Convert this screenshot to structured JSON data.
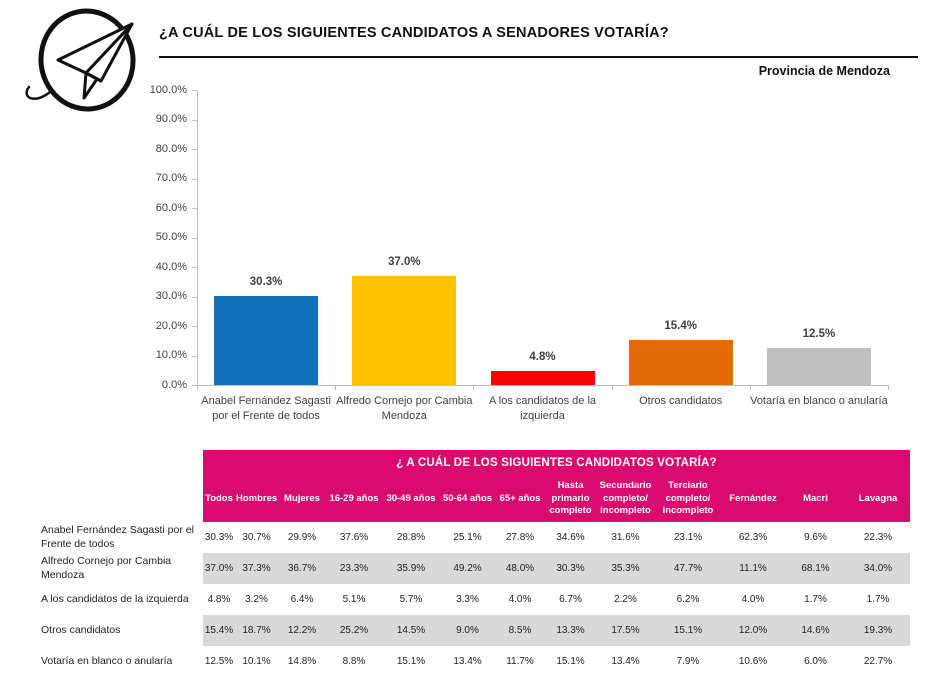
{
  "header": {
    "title": "¿A CUÁL DE LOS SIGUIENTES CANDIDATOS A SENADORES VOTARÍA?",
    "subtitle": "Provincia de Mendoza",
    "logo": "paper-plane-logo"
  },
  "chart_data": {
    "type": "bar",
    "title": "",
    "categories": [
      "Anabel Fernández Sagasti por el Frente de todos",
      "Alfredo Cornejo por Cambia Mendoza",
      "A los candidatos de la izquierda",
      "Otros candidatos",
      "Votaría en blanco o anularía"
    ],
    "values": [
      30.3,
      37.0,
      4.8,
      15.4,
      12.5
    ],
    "value_labels": [
      "30.3%",
      "37.0%",
      "4.8%",
      "15.4%",
      "12.5%"
    ],
    "bar_colors": [
      "#1172BA",
      "#FFC000",
      "#FE0000",
      "#E36C09",
      "#BFBFBF"
    ],
    "xlabel": "",
    "ylabel": "",
    "ylim": [
      0,
      100
    ],
    "y_ticks": [
      0,
      10,
      20,
      30,
      40,
      50,
      60,
      70,
      80,
      90,
      100
    ],
    "y_tick_labels": [
      "0.0%",
      "10.0%",
      "20.0%",
      "30.0%",
      "40.0%",
      "50.0%",
      "60.0%",
      "70.0%",
      "80.0%",
      "90.0%",
      "100.0%"
    ],
    "grid": false,
    "legend": false
  },
  "table": {
    "title": "¿ A  CUÁL DE LOS SIGUIENTES CANDIDATOS VOTARÍA?",
    "header_bg": "#D90B6E",
    "zebra_bg": "#D9D9D9",
    "columns": [
      "Todos",
      "Hombres",
      "Mujeres",
      "16-29 años",
      "30-49 años",
      "50-64 años",
      "65+ años",
      "Hasta primario completo",
      "Secundario completo/ incompleto",
      "Terciario completo/ incompleto",
      "Fernández",
      "Macri",
      "Lavagna"
    ],
    "rows": [
      {
        "label": "Anabel Fernández Sagasti por el Frente de todos",
        "values": [
          "30.3%",
          "30.7%",
          "29.9%",
          "37.6%",
          "28.8%",
          "25.1%",
          "27.8%",
          "34.6%",
          "31.6%",
          "23.1%",
          "62.3%",
          "9.6%",
          "22.3%"
        ]
      },
      {
        "label": "Alfredo Cornejo por Cambia Mendoza",
        "values": [
          "37.0%",
          "37.3%",
          "36.7%",
          "23.3%",
          "35.9%",
          "49.2%",
          "48.0%",
          "30.3%",
          "35.3%",
          "47.7%",
          "11.1%",
          "68.1%",
          "34.0%"
        ]
      },
      {
        "label": "A los candidatos de la izquierda",
        "values": [
          "4.8%",
          "3.2%",
          "6.4%",
          "5.1%",
          "5.7%",
          "3.3%",
          "4.0%",
          "6.7%",
          "2.2%",
          "6.2%",
          "4.0%",
          "1.7%",
          "1.7%"
        ]
      },
      {
        "label": "Otros candidatos",
        "values": [
          "15.4%",
          "18.7%",
          "12.2%",
          "25.2%",
          "14.5%",
          "9.0%",
          "8.5%",
          "13.3%",
          "17.5%",
          "15.1%",
          "12.0%",
          "14.6%",
          "19.3%"
        ]
      },
      {
        "label": "Votaría en blanco o anularía",
        "values": [
          "12.5%",
          "10.1%",
          "14.8%",
          "8.8%",
          "15.1%",
          "13.4%",
          "11.7%",
          "15.1%",
          "13.4%",
          "7.9%",
          "10.6%",
          "6.0%",
          "22.7%"
        ]
      }
    ]
  }
}
